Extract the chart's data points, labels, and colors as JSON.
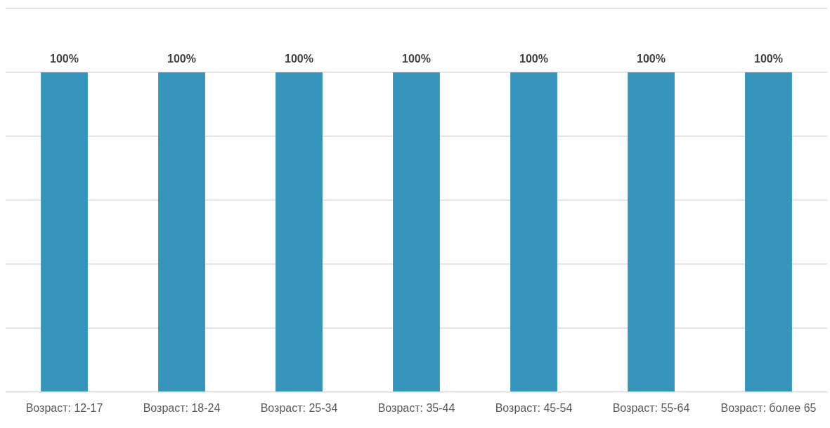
{
  "chart_data": {
    "type": "bar",
    "categories": [
      "Возраст: 12-17",
      "Возраст: 18-24",
      "Возраст: 25-34",
      "Возраст: 35-44",
      "Возраст: 45-54",
      "Возраст: 55-64",
      "Возраст: более 65"
    ],
    "values": [
      100,
      100,
      100,
      100,
      100,
      100,
      100
    ],
    "value_labels": [
      "100%",
      "100%",
      "100%",
      "100%",
      "100%",
      "100%",
      "100%"
    ],
    "color": "#3595bc",
    "ylim": [
      0,
      120
    ],
    "yticks": [
      {
        "value": 0,
        "label": null
      },
      {
        "value": 20,
        "label": null
      },
      {
        "value": 40,
        "label": null
      },
      {
        "value": 60,
        "label": null
      },
      {
        "value": 80,
        "label": null
      },
      {
        "value": 100,
        "label": null
      },
      {
        "value": 120,
        "label": null
      }
    ],
    "grid": "y",
    "tick_labels": "x",
    "legend": false
  }
}
